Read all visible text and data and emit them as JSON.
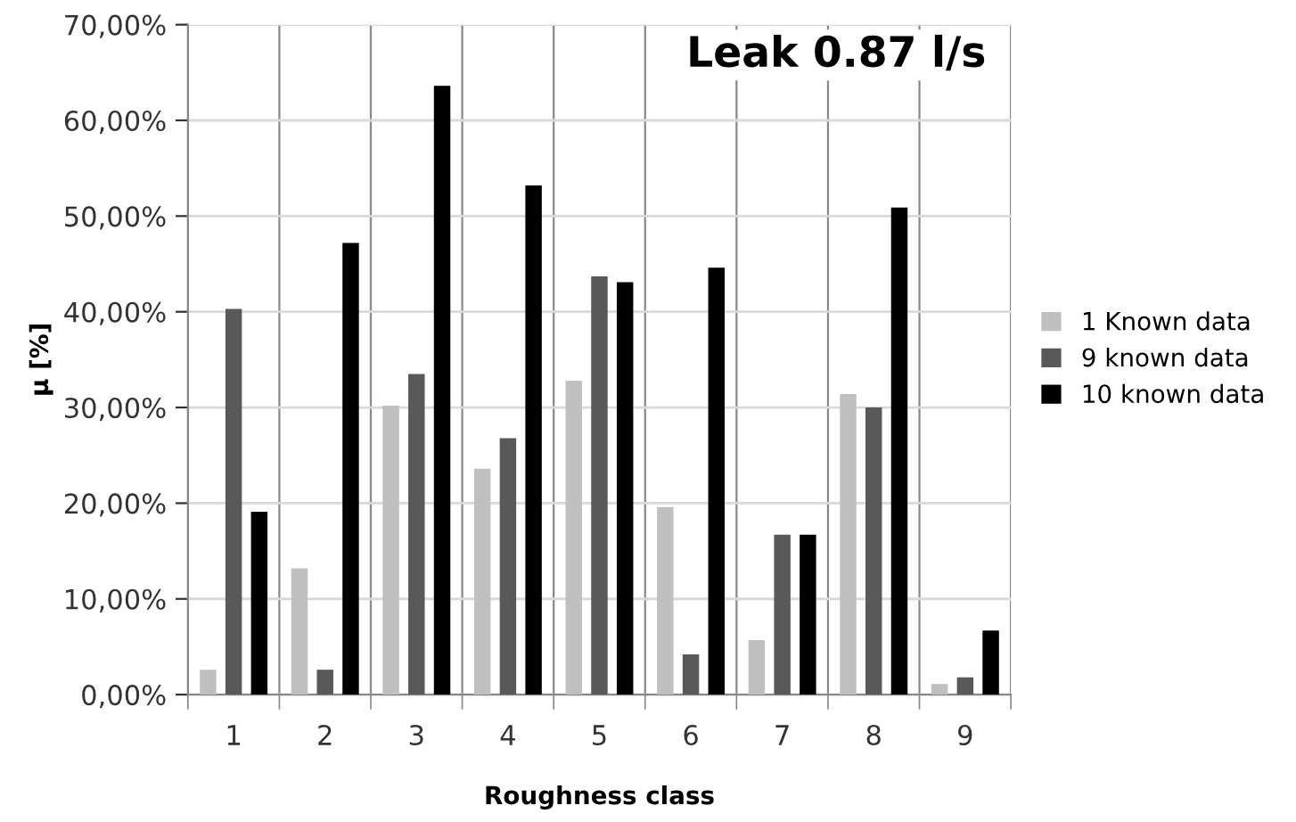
{
  "chart_data": {
    "type": "bar",
    "title": "Leak 0.87 l/s",
    "xlabel": "Roughness class",
    "ylabel": "µ [%]",
    "categories": [
      "1",
      "2",
      "3",
      "4",
      "5",
      "6",
      "7",
      "8",
      "9"
    ],
    "series": [
      {
        "name": "1 Known data",
        "color": "#c0c0c0",
        "values": [
          2.6,
          13.2,
          30.2,
          23.6,
          32.8,
          19.6,
          5.7,
          31.4,
          1.1
        ]
      },
      {
        "name": "9 known data",
        "color": "#595959",
        "values": [
          40.3,
          2.6,
          33.5,
          26.8,
          43.7,
          4.2,
          16.7,
          30.0,
          1.8
        ]
      },
      {
        "name": "10 known data",
        "color": "#000000",
        "values": [
          19.1,
          47.2,
          63.6,
          53.2,
          43.1,
          44.6,
          16.7,
          50.9,
          6.7
        ]
      }
    ],
    "ylim": [
      0,
      70
    ],
    "yticks": [
      {
        "value": 0,
        "label": "0,00%"
      },
      {
        "value": 10,
        "label": "10,00%"
      },
      {
        "value": 20,
        "label": "20,00%"
      },
      {
        "value": 30,
        "label": "30,00%"
      },
      {
        "value": 40,
        "label": "40,00%"
      },
      {
        "value": 50,
        "label": "50,00%"
      },
      {
        "value": 60,
        "label": "60,00%"
      },
      {
        "value": 70,
        "label": "70,00%"
      }
    ],
    "grid": true,
    "legend": "right"
  }
}
